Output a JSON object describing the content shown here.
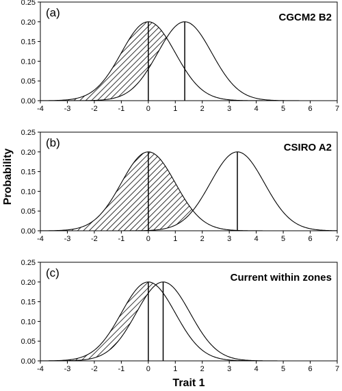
{
  "figure": {
    "ylabel": "Probability",
    "xlabel": "Trait 1"
  },
  "chart_data": [
    {
      "type": "line",
      "panel_label": "(a)",
      "title": "CGCM2 B2",
      "xlim": [
        -4,
        7
      ],
      "ylim": [
        0,
        0.25
      ],
      "x_ticks": [
        -4,
        -3,
        -2,
        -1,
        0,
        1,
        2,
        3,
        4,
        5,
        6,
        7
      ],
      "y_ticks": [
        0.0,
        0.05,
        0.1,
        0.15,
        0.2,
        0.25
      ],
      "grid": false,
      "series": [
        {
          "mean": 0.0,
          "sd": 1.0,
          "peak": 0.2,
          "style": "hatched-overlap"
        },
        {
          "mean": 1.35,
          "sd": 1.0,
          "peak": 0.2,
          "style": "outline"
        }
      ]
    },
    {
      "type": "line",
      "panel_label": "(b)",
      "title": "CSIRO A2",
      "xlim": [
        -4,
        7
      ],
      "ylim": [
        0,
        0.25
      ],
      "x_ticks": [
        -4,
        -3,
        -2,
        -1,
        0,
        1,
        2,
        3,
        4,
        5,
        6,
        7
      ],
      "y_ticks": [
        0.0,
        0.05,
        0.1,
        0.15,
        0.2,
        0.25
      ],
      "grid": false,
      "series": [
        {
          "mean": 0.0,
          "sd": 1.0,
          "peak": 0.2,
          "style": "hatched-overlap"
        },
        {
          "mean": 3.3,
          "sd": 1.0,
          "peak": 0.2,
          "style": "outline"
        }
      ]
    },
    {
      "type": "line",
      "panel_label": "(c)",
      "title": "Current within zones",
      "xlim": [
        -4,
        7
      ],
      "ylim": [
        0,
        0.25
      ],
      "x_ticks": [
        -4,
        -3,
        -2,
        -1,
        0,
        1,
        2,
        3,
        4,
        5,
        6,
        7
      ],
      "y_ticks": [
        0.0,
        0.05,
        0.1,
        0.15,
        0.2,
        0.25
      ],
      "grid": false,
      "series": [
        {
          "mean": 0.0,
          "sd": 1.0,
          "peak": 0.2,
          "style": "hatched-overlap"
        },
        {
          "mean": 0.55,
          "sd": 1.0,
          "peak": 0.2,
          "style": "outline"
        }
      ]
    }
  ]
}
